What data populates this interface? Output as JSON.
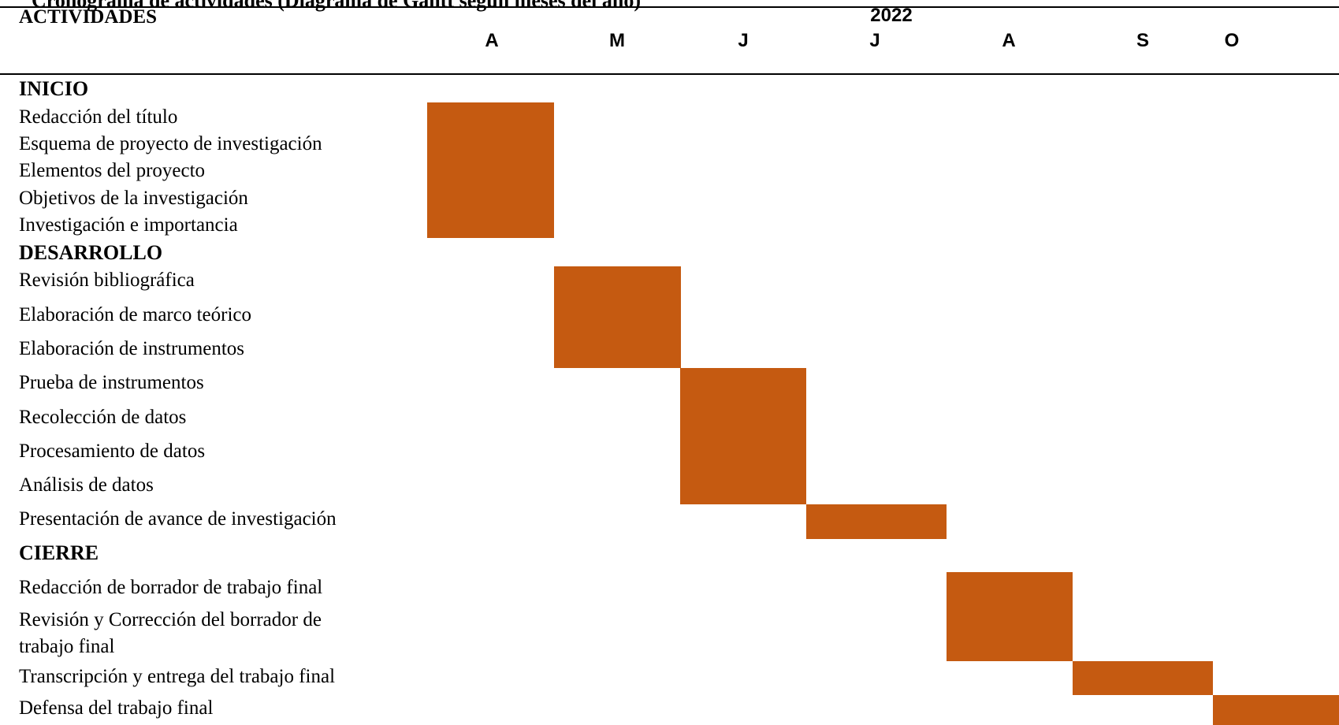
{
  "document": {
    "top_title": "Cronograma de actividades (Diagrama de Gantt segun meses del año)"
  },
  "header": {
    "activities_label": "ACTIVIDADES",
    "year": "2022",
    "months": [
      "A",
      "M",
      "J",
      "J",
      "A",
      "S",
      "O"
    ]
  },
  "phases": {
    "inicio": "INICIO",
    "desarrollo": "DESARROLLO",
    "cierre": "CIERRE"
  },
  "activities": [
    "Redacción del título",
    "Esquema de proyecto de investigación",
    "Elementos del proyecto",
    "Objetivos de la investigación",
    "Investigación e importancia",
    "Revisión bibliográfica",
    "Elaboración de marco teórico",
    "Elaboración de instrumentos",
    "Prueba de instrumentos",
    "Recolección de datos",
    "Procesamiento de datos",
    "Análisis de datos",
    "Presentación de avance de investigación",
    "Redacción de borrador de trabajo final",
    "Revisión y Corrección del borrador de",
    "trabajo final",
    "Transcripción y entrega del trabajo final",
    "Defensa del trabajo final"
  ],
  "gantt": {
    "bar_color": "#C55A11",
    "bars": [
      {
        "month": "A",
        "month_index": 0,
        "activities": [
          "Redacción del título",
          "Esquema de proyecto de investigación",
          "Elementos del proyecto",
          "Objetivos de la investigación",
          "Investigación e importancia"
        ]
      },
      {
        "month": "M",
        "month_index": 1,
        "activities": [
          "Revisión bibliográfica",
          "Elaboración de marco teórico",
          "Elaboración de instrumentos"
        ]
      },
      {
        "month": "J",
        "month_index": 2,
        "activities": [
          "Prueba de instrumentos",
          "Recolección de datos",
          "Procesamiento de datos",
          "Análisis de datos"
        ]
      },
      {
        "month": "J",
        "month_index": 3,
        "activities": [
          "Presentación de avance de investigación"
        ]
      },
      {
        "month": "A",
        "month_index": 4,
        "activities": [
          "Redacción de borrador de trabajo final",
          "Revisión y Corrección del borrador de trabajo final"
        ]
      },
      {
        "month": "S",
        "month_index": 5,
        "activities": [
          "Transcripción y entrega del trabajo final"
        ]
      },
      {
        "month": "O",
        "month_index": 6,
        "activities": [
          "Defensa del trabajo final"
        ]
      }
    ]
  }
}
